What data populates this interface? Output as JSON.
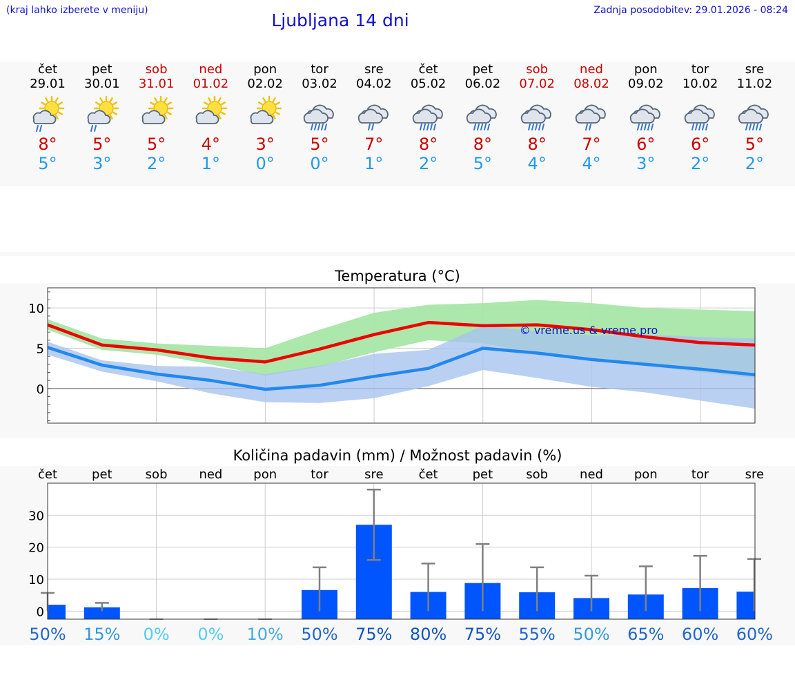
{
  "header": {
    "note": "(kraj lahko izberete v meniju)",
    "title": "Ljubljana 14 dni",
    "update": "Zadnja posodobitev: 29.01.2026 - 08:24"
  },
  "colors": {
    "weekday": "#000000",
    "weekend": "#cc0000",
    "tmax": "#cc0000",
    "tmin": "#2299ee",
    "link": "#1111cc"
  },
  "days": [
    {
      "name": "čet",
      "date": "29.01",
      "weekend": false,
      "icon": "sun-cloud-rain-icon",
      "tmax": "8°",
      "tmin": "5°"
    },
    {
      "name": "pet",
      "date": "30.01",
      "weekend": false,
      "icon": "sun-cloud-rain-icon",
      "tmax": "5°",
      "tmin": "3°"
    },
    {
      "name": "sob",
      "date": "31.01",
      "weekend": true,
      "icon": "sun-cloud-icon",
      "tmax": "5°",
      "tmin": "2°"
    },
    {
      "name": "ned",
      "date": "01.02",
      "weekend": true,
      "icon": "sun-cloud-icon",
      "tmax": "4°",
      "tmin": "1°"
    },
    {
      "name": "pon",
      "date": "02.02",
      "weekend": false,
      "icon": "sun-cloud-icon",
      "tmax": "3°",
      "tmin": "0°"
    },
    {
      "name": "tor",
      "date": "03.02",
      "weekend": false,
      "icon": "cloud-heavy-rain-icon",
      "tmax": "5°",
      "tmin": "0°"
    },
    {
      "name": "sre",
      "date": "04.02",
      "weekend": false,
      "icon": "cloud-rain-icon",
      "tmax": "7°",
      "tmin": "1°"
    },
    {
      "name": "čet",
      "date": "05.02",
      "weekend": false,
      "icon": "cloud-heavy-rain-icon",
      "tmax": "8°",
      "tmin": "2°"
    },
    {
      "name": "pet",
      "date": "06.02",
      "weekend": false,
      "icon": "cloud-heavy-rain-icon",
      "tmax": "8°",
      "tmin": "5°"
    },
    {
      "name": "sob",
      "date": "07.02",
      "weekend": true,
      "icon": "cloud-heavy-rain-icon",
      "tmax": "8°",
      "tmin": "4°"
    },
    {
      "name": "ned",
      "date": "08.02",
      "weekend": true,
      "icon": "cloud-rain-icon",
      "tmax": "7°",
      "tmin": "4°"
    },
    {
      "name": "pon",
      "date": "09.02",
      "weekend": false,
      "icon": "cloud-heavy-rain-icon",
      "tmax": "6°",
      "tmin": "3°"
    },
    {
      "name": "tor",
      "date": "10.02",
      "weekend": false,
      "icon": "cloud-heavy-rain-icon",
      "tmax": "6°",
      "tmin": "2°"
    },
    {
      "name": "sre",
      "date": "11.02",
      "weekend": false,
      "icon": "cloud-heavy-rain-icon",
      "tmax": "5°",
      "tmin": "2°"
    }
  ],
  "chart_data": [
    {
      "type": "line",
      "title": "Temperatura (°C)",
      "watermark": "© vreme.us & vreme.pro",
      "ylim": [
        -4.3,
        12.5
      ],
      "yticks": [
        0,
        5,
        10
      ],
      "grid": true,
      "x": [
        "29.01",
        "30.01",
        "31.01",
        "01.02",
        "02.02",
        "03.02",
        "04.02",
        "05.02",
        "06.02",
        "07.02",
        "08.02",
        "09.02",
        "10.02",
        "11.02"
      ],
      "series": [
        {
          "color": "#ee0000",
          "values": [
            7.9,
            5.4,
            4.8,
            3.8,
            3.3,
            4.9,
            6.7,
            8.2,
            7.8,
            7.9,
            7.3,
            6.4,
            5.7,
            5.4
          ],
          "band_color": "#a8e6a8",
          "band_low": [
            7.3,
            4.8,
            4.2,
            3.0,
            1.6,
            2.7,
            4.5,
            6.0,
            5.6,
            4.4,
            3.5,
            2.8,
            2.0,
            1.3
          ],
          "band_high": [
            8.6,
            6.2,
            5.6,
            5.3,
            5.0,
            7.3,
            9.4,
            10.4,
            10.6,
            11.0,
            10.6,
            10.0,
            9.8,
            9.6
          ]
        },
        {
          "color": "#2288ee",
          "values": [
            5.1,
            2.9,
            1.8,
            1.0,
            -0.1,
            0.4,
            1.5,
            2.5,
            5.0,
            4.4,
            3.6,
            3.0,
            2.4,
            1.7
          ],
          "band_color": "#a8c4f0",
          "band_low": [
            4.2,
            2.1,
            0.9,
            -0.6,
            -1.7,
            -1.8,
            -1.2,
            0.3,
            2.3,
            1.3,
            0.2,
            -0.5,
            -1.5,
            -2.5
          ],
          "band_high": [
            5.8,
            3.5,
            2.8,
            2.7,
            1.8,
            2.8,
            4.3,
            4.8,
            7.8,
            7.1,
            6.6,
            6.7,
            6.4,
            6.2
          ]
        }
      ]
    },
    {
      "type": "bar",
      "title": "Količina padavin (mm) / Možnost padavin (%)",
      "ylim": [
        -2.5,
        40
      ],
      "yticks": [
        0,
        10,
        20,
        30
      ],
      "grid": true,
      "categories": [
        "čet",
        "pet",
        "sob",
        "ned",
        "pon",
        "tor",
        "sre",
        "čet",
        "pet",
        "sob",
        "ned",
        "pon",
        "tor",
        "sre"
      ],
      "values": [
        2.0,
        1.2,
        0,
        0,
        0,
        6.6,
        27.0,
        6.0,
        8.8,
        5.9,
        4.1,
        5.2,
        7.2,
        6.1
      ],
      "error_low": [
        0,
        0,
        0,
        0,
        0,
        0,
        16.0,
        0,
        0,
        0,
        0,
        0,
        0,
        0
      ],
      "error_high": [
        5.7,
        2.6,
        0,
        0,
        0,
        13.7,
        38.0,
        14.9,
        21.0,
        13.7,
        11.1,
        14.0,
        17.3,
        16.3
      ],
      "bar_color": "#0055ff",
      "probability": [
        "50%",
        "15%",
        "0%",
        "0%",
        "10%",
        "50%",
        "75%",
        "80%",
        "75%",
        "55%",
        "50%",
        "65%",
        "60%",
        "60%"
      ],
      "probability_colors": [
        "#2266cc",
        "#3399dd",
        "#55ccee",
        "#55ccee",
        "#44aadd",
        "#2266cc",
        "#1155bb",
        "#1155bb",
        "#1155bb",
        "#2266cc",
        "#3399dd",
        "#2266cc",
        "#2266cc",
        "#2266cc"
      ]
    }
  ]
}
